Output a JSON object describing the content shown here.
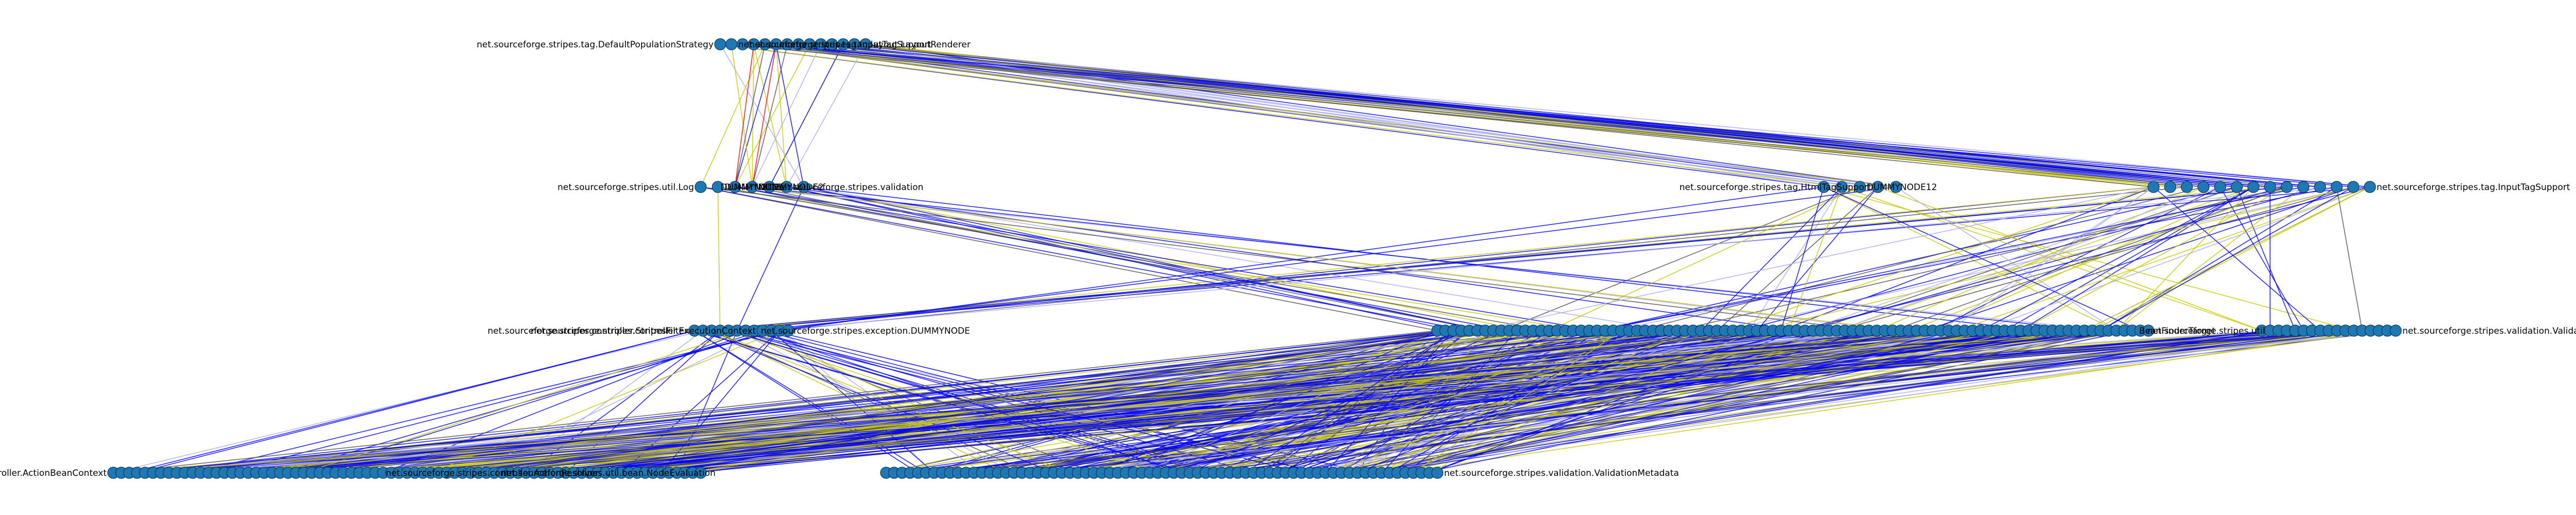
{
  "figure": {
    "title": "",
    "layout": "layered",
    "background": "#ffffff",
    "node_color": "#1f77b4",
    "edge_colors": {
      "primary": "#0000ff",
      "secondary": "#c8c800",
      "tertiary": "#505050",
      "highlight": "#ff0000",
      "muted": "#aaaaff"
    }
  },
  "layers": [
    {
      "name": "layer-1",
      "labels": [
        {
          "text": "net.sourceforge.stripes.tag.DefaultPopulationStrategy",
          "anchor": "end",
          "node_index": 0
        },
        {
          "text": "net.sourceforge.stripes.tag.InputTagSupport",
          "anchor": "start",
          "node_index": 1
        },
        {
          "text": "net.sourceforge.stripes.tag.layout.LayoutRenderer",
          "anchor": "start",
          "node_index": 2
        }
      ],
      "node_count": 14
    },
    {
      "name": "layer-2",
      "labels": [
        {
          "text": "net.sourceforge.stripes.util.Log",
          "anchor": "end",
          "node_index": 0
        },
        {
          "text": "DUMMYNODE",
          "anchor": "start",
          "node_index": 1
        },
        {
          "text": "DUMMYNODE2",
          "anchor": "start",
          "node_index": 3
        },
        {
          "text": "net.sourceforge.stripes.validation",
          "anchor": "start",
          "node_index": 4
        },
        {
          "text": "DUMMYNODE",
          "anchor": "end",
          "node_index": 5
        },
        {
          "text": "DUMMYNODE12",
          "anchor": "start",
          "node_index": 9
        },
        {
          "text": "net.sourceforge.stripes.tag.HtmlTagSupport",
          "anchor": "end",
          "node_index": 10
        },
        {
          "text": "net.sourceforge.stripes.tag.InputTagSupport",
          "anchor": "start",
          "node_index": 25
        }
      ],
      "node_count": 26
    },
    {
      "name": "layer-3",
      "labels": [
        {
          "text": "net.sourceforge.stripes.controller.StripesFilter",
          "anchor": "end",
          "node_index": 0
        },
        {
          "text": "net.sourceforge.stripes.exception.DUMMYNODE",
          "anchor": "start",
          "node_index": 7
        },
        {
          "text": "net.sourceforge.stripes.controller.ExecutionContext",
          "anchor": "end",
          "node_index": 8
        },
        {
          "text": "BeanFinderTarget",
          "anchor": "start",
          "node_index": 99
        },
        {
          "text": "net.sourceforge.stripes.util",
          "anchor": "start",
          "node_index": 100
        },
        {
          "text": "net.sourceforge.stripes.validation.ValidationMetadataProvider",
          "anchor": "start",
          "node_index": 118
        }
      ],
      "node_count": 119
    },
    {
      "name": "layer-4",
      "labels": [
        {
          "text": "net.sourceforge.stripes.controller.ActionBeanContext",
          "anchor": "end",
          "node_index": 0
        },
        {
          "text": "net.sourceforge.stripes.util.bean.NodeEvaluation",
          "anchor": "start",
          "node_index": 48
        },
        {
          "text": "net.sourceforge.stripes.controller.ActionResolver",
          "anchor": "end",
          "node_index": 62
        },
        {
          "text": "net.sourceforge.stripes.validation.ValidationMetadata",
          "anchor": "start",
          "node_index": 144
        }
      ],
      "node_count": 145
    }
  ]
}
